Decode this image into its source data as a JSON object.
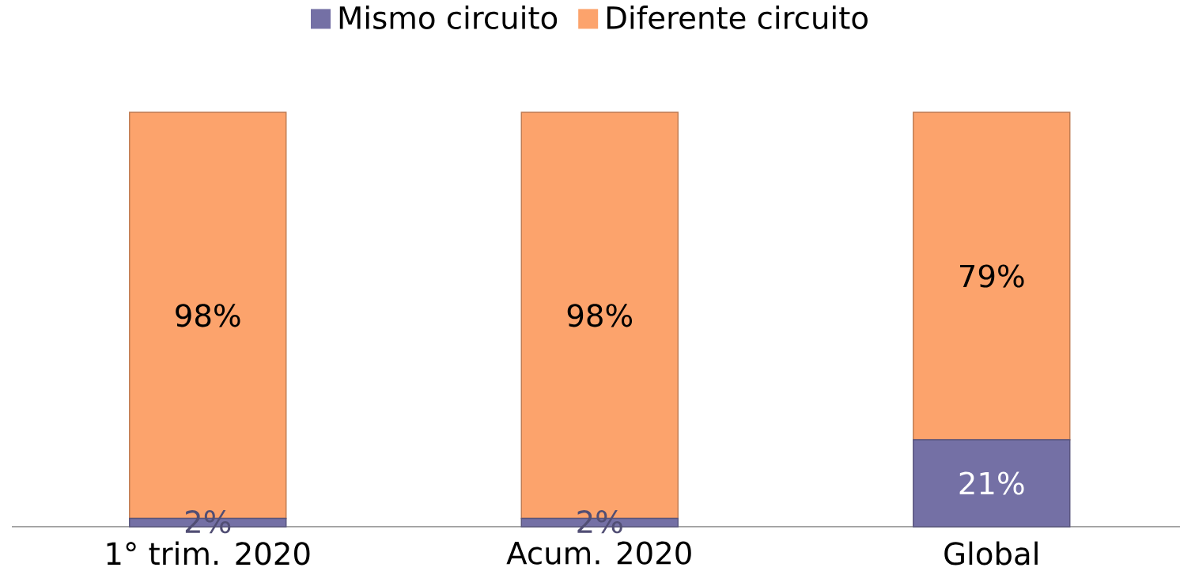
{
  "chart_data": {
    "type": "bar",
    "stacked": true,
    "legend": "top",
    "categories": [
      "1° trim. 2020",
      "Acum. 2020",
      "Global"
    ],
    "series": [
      {
        "name": "Mismo circuito",
        "color": "#7470a5",
        "values": [
          2,
          2,
          21
        ],
        "value_labels": [
          "2%",
          "2%",
          "21%"
        ]
      },
      {
        "name": "Diferente circuito",
        "color": "#fca36c",
        "values": [
          98,
          98,
          79
        ],
        "value_labels": [
          "98%",
          "98%",
          "79%"
        ]
      }
    ]
  }
}
